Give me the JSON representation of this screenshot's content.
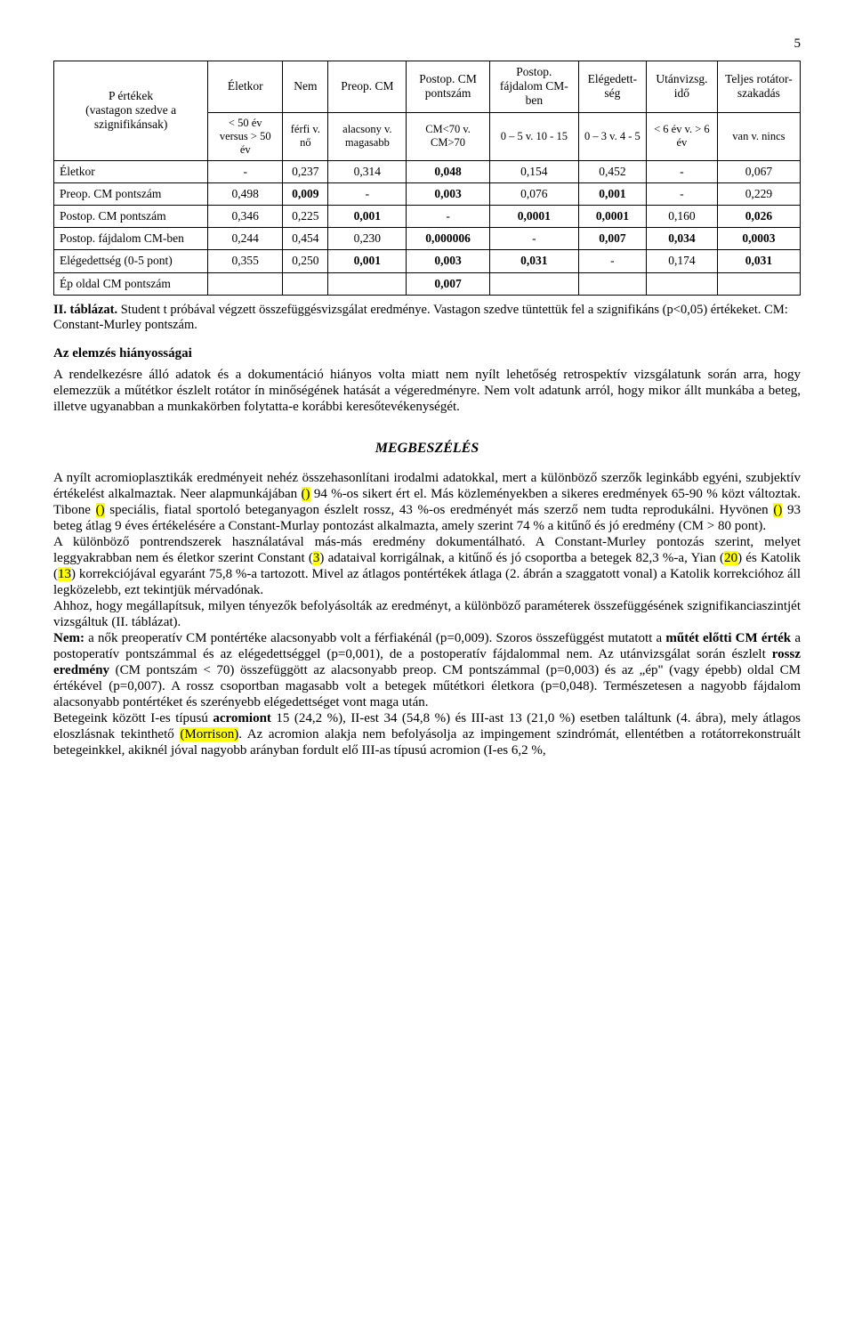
{
  "page_number": "5",
  "table": {
    "corner_label_1": "P értékek",
    "corner_label_2": "(vastagon szedve a szignifikánsak)",
    "headers": [
      {
        "top": "Életkor",
        "sub": "< 50 év versus > 50 év"
      },
      {
        "top": "Nem",
        "sub": "férfi v. nő"
      },
      {
        "top": "Preop. CM",
        "sub": "alacsony v. magasabb"
      },
      {
        "top": "Postop. CM pontszám",
        "sub": "CM<70 v. CM>70"
      },
      {
        "top": "Postop. fájdalom CM-ben",
        "sub": "0 – 5 v. 10 - 15"
      },
      {
        "top": "Elégedett-ség",
        "sub": "0 – 3 v. 4 - 5"
      },
      {
        "top": "Utánvizsg. idő",
        "sub": "< 6 év v. > 6 év"
      },
      {
        "top": "Teljes rotátor-szakadás",
        "sub": "van v. nincs"
      }
    ],
    "rows": [
      {
        "label": "Életkor",
        "cells": [
          {
            "v": "-",
            "b": false
          },
          {
            "v": "0,237",
            "b": false
          },
          {
            "v": "0,314",
            "b": false
          },
          {
            "v": "0,048",
            "b": true
          },
          {
            "v": "0,154",
            "b": false
          },
          {
            "v": "0,452",
            "b": false
          },
          {
            "v": "-",
            "b": false
          },
          {
            "v": "0,067",
            "b": false
          }
        ]
      },
      {
        "label": "Preop. CM pontszám",
        "cells": [
          {
            "v": "0,498",
            "b": false
          },
          {
            "v": "0,009",
            "b": true
          },
          {
            "v": "-",
            "b": false
          },
          {
            "v": "0,003",
            "b": true
          },
          {
            "v": "0,076",
            "b": false
          },
          {
            "v": "0,001",
            "b": true
          },
          {
            "v": "-",
            "b": false
          },
          {
            "v": "0,229",
            "b": false
          }
        ]
      },
      {
        "label": "Postop. CM pontszám",
        "cells": [
          {
            "v": "0,346",
            "b": false
          },
          {
            "v": "0,225",
            "b": false
          },
          {
            "v": "0,001",
            "b": true
          },
          {
            "v": "-",
            "b": false
          },
          {
            "v": "0,0001",
            "b": true
          },
          {
            "v": "0,0001",
            "b": true
          },
          {
            "v": "0,160",
            "b": false
          },
          {
            "v": "0,026",
            "b": true
          }
        ]
      },
      {
        "label": "Postop. fájdalom CM-ben",
        "cells": [
          {
            "v": "0,244",
            "b": false
          },
          {
            "v": "0,454",
            "b": false
          },
          {
            "v": "0,230",
            "b": false
          },
          {
            "v": "0,000006",
            "b": true
          },
          {
            "v": "-",
            "b": false
          },
          {
            "v": "0,007",
            "b": true
          },
          {
            "v": "0,034",
            "b": true
          },
          {
            "v": "0,0003",
            "b": true
          }
        ]
      },
      {
        "label": "Elégedettség (0-5 pont)",
        "cells": [
          {
            "v": "0,355",
            "b": false
          },
          {
            "v": "0,250",
            "b": false
          },
          {
            "v": "0,001",
            "b": true
          },
          {
            "v": "0,003",
            "b": true
          },
          {
            "v": "0,031",
            "b": true
          },
          {
            "v": "-",
            "b": false
          },
          {
            "v": "0,174",
            "b": false
          },
          {
            "v": "0,031",
            "b": true
          }
        ]
      },
      {
        "label": "Ép oldal CM pontszám",
        "cells": [
          {
            "v": "",
            "b": false
          },
          {
            "v": "",
            "b": false
          },
          {
            "v": "",
            "b": false
          },
          {
            "v": "0,007",
            "b": true
          },
          {
            "v": "",
            "b": false
          },
          {
            "v": "",
            "b": false
          },
          {
            "v": "",
            "b": false
          },
          {
            "v": "",
            "b": false
          }
        ]
      }
    ]
  },
  "caption": {
    "lead": "II. táblázat.",
    "rest": " Student t próbával végzett összefüggésvizsgálat eredménye. Vastagon szedve tüntettük fel a szignifikáns (p<0,05) értékeket. CM: Constant-Murley pontszám."
  },
  "sections": {
    "hiany_title": "Az elemzés hiányosságai",
    "hiany_body": "A rendelkezésre álló adatok és a dokumentáció hiányos volta miatt nem nyílt lehetőség retrospektív vizsgálatunk során arra, hogy elemezzük a műtétkor észlelt rotátor ín minőségének hatását a végeredményre. Nem volt adatunk arról, hogy mikor állt munkába a beteg, illetve ugyanabban a munkakörben folytatta-e korábbi keresőtevékenységét.",
    "megb_title": "MEGBESZÉLÉS",
    "p1_a": "A nyílt acromioplasztikák eredményeit nehéz összehasonlítani irodalmi adatokkal, mert a különböző szerzők leginkább egyéni, szubjektív értékelést alkalmaztak. Neer alapmunkájában ",
    "p1_b": " 94 %-os sikert ért el. Más közleményekben a sikeres eredmények 65-90 % közt változtak. Tibone ",
    "p1_c": " speciális, fiatal sportoló beteganyagon észlelt rossz, 43 %-os eredményét más szerző nem tudta reprodukálni. Hyvönen ",
    "p1_d": " 93 beteg átlag 9 éves értékelésére a Constant-Murlay pontozást alkalmazta, amely szerint 74 % a kitűnő és jó eredmény (CM > 80 pont).",
    "hl1": "()",
    "hl2": "()",
    "hl3": "()",
    "p2_a": "A különböző pontrendszerek használatával más-más eredmény dokumentálható. A Constant-Murley pontozás szerint, melyet leggyakrabban nem és életkor szerint Constant (",
    "p2_b": ") adataival korrigálnak, a kitűnő és jó csoportba a betegek 82,3 %-a, Yian (",
    "p2_c": ") és Katolik (",
    "p2_d": ") korrekciójával egyaránt 75,8 %-a tartozott.  Mivel az átlagos pontértékek átlaga (2. ábrán a szaggatott vonal) a Katolik korrekcióhoz áll legközelebb, ezt tekintjük mérvadónak.",
    "hl4": "3",
    "hl5": "20",
    "hl6": "13",
    "p3": "Ahhoz, hogy megállapítsuk, milyen tényezők befolyásolták az eredményt, a különböző paraméterek összefüggésének szignifikanciaszintjét vizsgáltuk (II. táblázat).",
    "p4_a": "Nem:",
    "p4_b": " a nők preoperatív CM pontértéke alacsonyabb volt a férfiakénál (p=0,009). Szoros összefüggést mutatott a ",
    "p4_c": "műtét előtti CM érték",
    "p4_d": " a postoperatív pontszámmal és az elégedettséggel (p=0,001), de a postoperatív fájdalommal nem. Az utánvizsgálat során észlelt ",
    "p4_e": "rossz eredmény",
    "p4_f": " (CM pontszám < 70) összefüggött az alacsonyabb preop. CM pontszámmal (p=0,003) és az „ép\" (vagy épebb) oldal CM értékével (p=0,007). A rossz csoportban magasabb volt a betegek műtétkori életkora (p=0,048). Természetesen a nagyobb fájdalom alacsonyabb pontértéket és szerényebb elégedettséget vont maga után.",
    "p5_a": "Betegeink között I-es típusú ",
    "p5_b": "acromiont",
    "p5_c": " 15 (24,2 %), II-est 34 (54,8 %) és III-ast 13 (21,0 %) esetben találtunk (4. ábra), mely átlagos eloszlásnak tekinthető ",
    "p5_d": ". Az acromion alakja nem befolyásolja az impingement szindrómát, ellentétben a rotátorrekonstruált betegeinkkel, akiknél jóval nagyobb arányban fordult elő III-as típusú acromion (I-es 6,2 %,",
    "hl7": "(Morrison)"
  }
}
